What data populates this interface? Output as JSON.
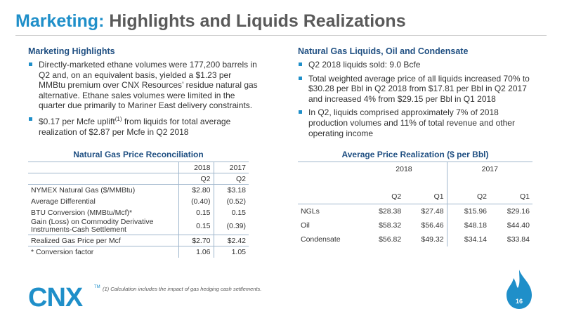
{
  "title": {
    "accent": "Marketing:",
    "rest": "Highlights and Liquids Realizations"
  },
  "left": {
    "heading": "Marketing Highlights",
    "bullets": [
      {
        "pre": "Directly-marketed ethane volumes were 177,200 barrels in Q2 and, on an equivalent basis, yielded a $1.23 per MMBtu premium over CNX Resources’ residue natural gas alternative.  Ethane sales volumes were limited in the quarter due primarily to Mariner East delivery constraints.",
        "sup": "",
        "post": ""
      },
      {
        "pre": "$0.17 per Mcfe uplift",
        "sup": "(1)",
        "post": " from liquids for total average realization of $2.87 per Mcfe in Q2 2018"
      }
    ]
  },
  "right": {
    "heading": "Natural Gas Liquids, Oil and Condensate",
    "bullets": [
      "Q2 2018 liquids sold: 9.0 Bcfe",
      "Total weighted average price of all liquids increased 70% to $30.28 per Bbl in Q2 2018 from $17.81 per Bbl in Q2 2017 and increased 4% from $29.15 per Bbl in Q1 2018",
      "In Q2, liquids comprised approximately 7% of 2018 production volumes and 11% of total revenue and other operating income"
    ]
  },
  "table1": {
    "title": "Natural Gas Price Reconciliation",
    "years": [
      "2018",
      "2017"
    ],
    "quarters": [
      "Q2",
      "Q2"
    ],
    "rows": [
      {
        "label": "NYMEX Natural Gas ($/MMBtu)",
        "v": [
          "$2.80",
          "$3.18"
        ]
      },
      {
        "label": "Average Differential",
        "v": [
          "(0.40)",
          "(0.52)"
        ]
      },
      {
        "label": "BTU Conversion (MMBtu/Mcf)*",
        "v": [
          "0.15",
          "0.15"
        ]
      },
      {
        "label": "Gain (Loss) on Commodity Derivative Instruments-Cash Settlement",
        "v": [
          "0.15",
          "(0.39)"
        ]
      },
      {
        "label": "Realized Gas Price per Mcf",
        "v": [
          "$2.70",
          "$2.42"
        ]
      },
      {
        "label": "* Conversion factor",
        "v": [
          "1.06",
          "1.05"
        ]
      }
    ]
  },
  "table2": {
    "title": "Average Price Realization ($ per Bbl)",
    "years": [
      "2018",
      "2017"
    ],
    "quarters": [
      "Q2",
      "Q1",
      "Q2",
      "Q1"
    ],
    "rows": [
      {
        "label": "NGLs",
        "v": [
          "$28.38",
          "$27.48",
          "$15.96",
          "$29.16"
        ]
      },
      {
        "label": "Oil",
        "v": [
          "$58.32",
          "$56.46",
          "$48.18",
          "$44.40"
        ]
      },
      {
        "label": "Condensate",
        "v": [
          "$56.82",
          "$49.32",
          "$34.14",
          "$33.84"
        ]
      }
    ]
  },
  "footnote": "(1)   Calculation includes the impact of gas hedging cash settlements.",
  "logo": {
    "text": "CNX",
    "tm": "TM"
  },
  "page_number": "16",
  "colors": {
    "accent": "#1f8fc9",
    "heading": "#1f4f82",
    "flame": "#1f8fc9"
  }
}
